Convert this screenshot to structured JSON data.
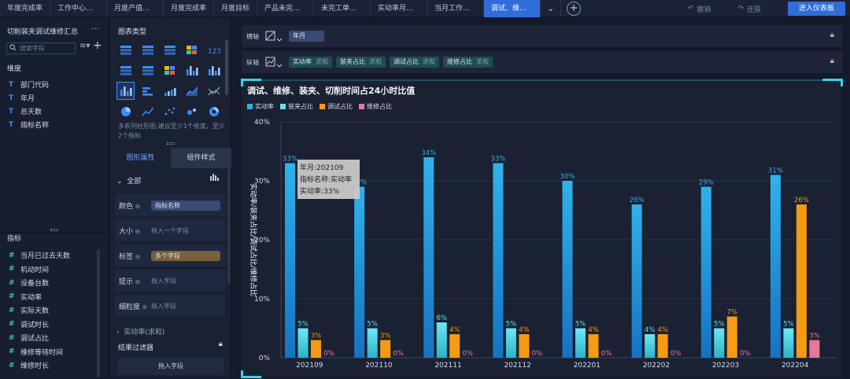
{
  "tabs": [
    {
      "label": "年度完成率",
      "active": false
    },
    {
      "label": "工作中心年完...",
      "active": false
    },
    {
      "label": "月度产值完成...",
      "active": false
    },
    {
      "label": "月度完成率",
      "active": false
    },
    {
      "label": "月度目标",
      "active": false
    },
    {
      "label": "产品未完产值...",
      "active": false
    },
    {
      "label": "未完工单超期...",
      "active": false
    },
    {
      "label": "实动率月度变化",
      "active": false
    },
    {
      "label": "当月工作中心...",
      "active": false
    },
    {
      "label": "调试、维修、...",
      "active": true
    }
  ],
  "toolbar": {
    "undo": "撤销",
    "redo": "还原",
    "enter_dashboard": "进入仪表板"
  },
  "field_panel": {
    "title": "切削装夹调试维修汇总",
    "search_placeholder": "搜索字段",
    "dimensions_header": "维度",
    "dimensions": [
      "部门代码",
      "年月",
      "总天数",
      "指标名称"
    ],
    "measures_header": "指标",
    "measures": [
      "当月已过去天数",
      "机动时间",
      "设备台数",
      "实动率",
      "实际天数",
      "调试时长",
      "调试占比",
      "维修等待时间",
      "维修时长"
    ]
  },
  "type_panel": {
    "title": "图表类型",
    "hint": "多系列柱形图:建议至少1个维度，至少2个指标",
    "tab_graph": "图形属性",
    "tab_component": "组件样式",
    "all_label": "全部",
    "props": [
      {
        "label": "颜色",
        "value": "指标名称",
        "kind": "chip-blue"
      },
      {
        "label": "大小",
        "value": "拖入一个字段",
        "kind": "placeholder"
      },
      {
        "label": "标签",
        "value": "多个字段",
        "kind": "chip-brown"
      },
      {
        "label": "提示",
        "value": "拖入字段",
        "kind": "placeholder"
      },
      {
        "label": "细粒度",
        "value": "拖入字段",
        "kind": "placeholder"
      }
    ],
    "measure_row": "实动率(求和)",
    "filter_title": "结果过滤器",
    "filter_drop": "拖入字段"
  },
  "axes": {
    "x_label": "横轴",
    "x_field": "年月",
    "y_label": "纵轴",
    "y_fields": [
      {
        "name": "实动率",
        "agg": "求和"
      },
      {
        "name": "装夹占比",
        "agg": "求和"
      },
      {
        "name": "调试占比",
        "agg": "求和"
      },
      {
        "name": "维修占比",
        "agg": "求和"
      }
    ]
  },
  "tooltip": {
    "lines": [
      "年月:202109",
      "指标名称:实动率",
      "实动率:33%"
    ]
  },
  "chart_data": {
    "type": "bar",
    "title": "调试、维修、装夹、切削时间占24小时比值",
    "ylabel": "实动率/装夹占比/调试占比/维修占比",
    "xlabel": "",
    "ylim": [
      0,
      40
    ],
    "yticks": [
      "0%",
      "10%",
      "20%",
      "30%",
      "40%"
    ],
    "categories": [
      "202109",
      "202110",
      "202111",
      "202112",
      "202201",
      "202202",
      "202203",
      "202204"
    ],
    "series": [
      {
        "name": "实动率",
        "color": "#2fb2ea",
        "values": [
          33,
          29,
          34,
          33,
          30,
          26,
          29,
          31
        ]
      },
      {
        "name": "装夹占比",
        "color": "#5fe3f0",
        "values": [
          5,
          5,
          6,
          5,
          5,
          4,
          5,
          5
        ]
      },
      {
        "name": "调试占比",
        "color": "#f59a12",
        "values": [
          3,
          3,
          4,
          4,
          4,
          4,
          7,
          26
        ]
      },
      {
        "name": "维修占比",
        "color": "#e8789a",
        "values": [
          0,
          0,
          0,
          0,
          0,
          0,
          0,
          3
        ]
      }
    ]
  }
}
